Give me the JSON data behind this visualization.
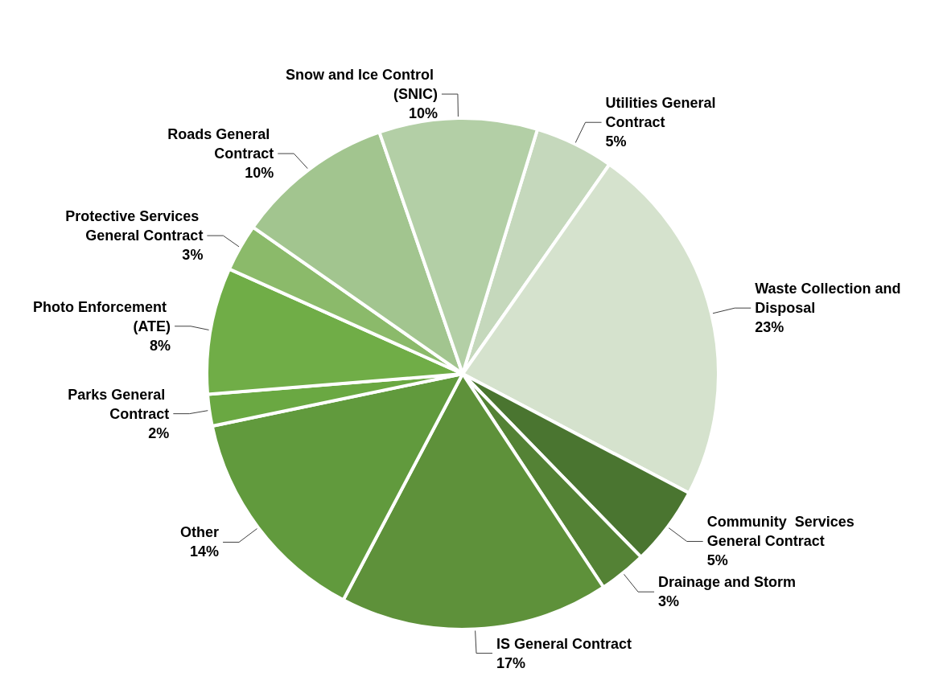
{
  "chart_data": {
    "type": "pie",
    "categories": [
      "Utilities General Contract",
      "Waste Collection and Disposal",
      "Community  Services General Contract",
      "Drainage and Storm",
      "IS General Contract",
      "Other",
      "Parks General Contract",
      "Photo Enforcement (ATE)",
      "Protective Services General Contract",
      "Roads General Contract",
      "Snow and Ice Control (SNIC)"
    ],
    "values": [
      5,
      23,
      5,
      3,
      17,
      14,
      2,
      8,
      3,
      10,
      10
    ],
    "value_labels": [
      "5%",
      "23%",
      "5%",
      "3%",
      "17%",
      "14%",
      "2%",
      "8%",
      "3%",
      "10%",
      "10%"
    ],
    "colors": [
      "#c5d8bc",
      "#d5e2cd",
      "#4a7530",
      "#548235",
      "#5e913a",
      "#619a3d",
      "#6aa842",
      "#70ad47",
      "#8bba6a",
      "#a2c58f",
      "#b3cfa6"
    ],
    "legend": false
  }
}
